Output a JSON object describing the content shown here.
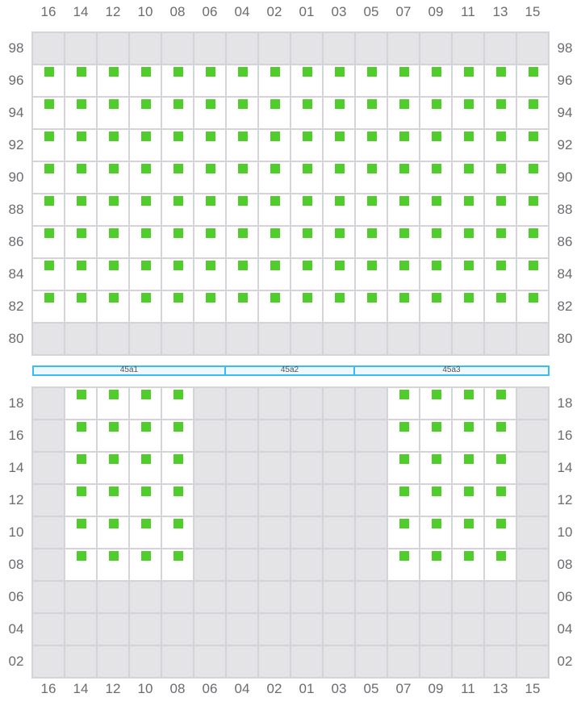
{
  "columns": [
    "16",
    "14",
    "12",
    "10",
    "08",
    "06",
    "04",
    "02",
    "01",
    "03",
    "05",
    "07",
    "09",
    "11",
    "13",
    "15"
  ],
  "colors": {
    "slot_occupied": "#4fcd2b",
    "slot_empty": "#ffffff",
    "slot_unavailable": "#e4e4e7",
    "grid_line": "#d4d4d8",
    "bar_border": "#38bdf8"
  },
  "top_section": {
    "rows": [
      {
        "label": "98",
        "occupied": []
      },
      {
        "label": "96",
        "occupied": [
          "16",
          "14",
          "12",
          "10",
          "08",
          "06",
          "04",
          "02",
          "01",
          "03",
          "05",
          "07",
          "09",
          "11",
          "13",
          "15"
        ]
      },
      {
        "label": "94",
        "occupied": [
          "16",
          "14",
          "12",
          "10",
          "08",
          "06",
          "04",
          "02",
          "01",
          "03",
          "05",
          "07",
          "09",
          "11",
          "13",
          "15"
        ]
      },
      {
        "label": "92",
        "occupied": [
          "16",
          "14",
          "12",
          "10",
          "08",
          "06",
          "04",
          "02",
          "01",
          "03",
          "05",
          "07",
          "09",
          "11",
          "13",
          "15"
        ]
      },
      {
        "label": "90",
        "occupied": [
          "16",
          "14",
          "12",
          "10",
          "08",
          "06",
          "04",
          "02",
          "01",
          "03",
          "05",
          "07",
          "09",
          "11",
          "13",
          "15"
        ]
      },
      {
        "label": "88",
        "occupied": [
          "16",
          "14",
          "12",
          "10",
          "08",
          "06",
          "04",
          "02",
          "01",
          "03",
          "05",
          "07",
          "09",
          "11",
          "13",
          "15"
        ]
      },
      {
        "label": "86",
        "occupied": [
          "16",
          "14",
          "12",
          "10",
          "08",
          "06",
          "04",
          "02",
          "01",
          "03",
          "05",
          "07",
          "09",
          "11",
          "13",
          "15"
        ]
      },
      {
        "label": "84",
        "occupied": [
          "16",
          "14",
          "12",
          "10",
          "08",
          "06",
          "04",
          "02",
          "01",
          "03",
          "05",
          "07",
          "09",
          "11",
          "13",
          "15"
        ]
      },
      {
        "label": "82",
        "occupied": [
          "16",
          "14",
          "12",
          "10",
          "08",
          "06",
          "04",
          "02",
          "01",
          "03",
          "05",
          "07",
          "09",
          "11",
          "13",
          "15"
        ]
      },
      {
        "label": "80",
        "occupied": []
      }
    ]
  },
  "segments": [
    {
      "label": "45a1",
      "columns": [
        "16",
        "14",
        "12",
        "10",
        "08",
        "06"
      ]
    },
    {
      "label": "45a2",
      "columns": [
        "04",
        "02",
        "01",
        "03"
      ]
    },
    {
      "label": "45a3",
      "columns": [
        "05",
        "07",
        "09",
        "11",
        "13",
        "15"
      ]
    }
  ],
  "bottom_section": {
    "rows": [
      {
        "label": "18",
        "occupied": [
          "14",
          "12",
          "10",
          "08",
          "07",
          "09",
          "11",
          "13"
        ]
      },
      {
        "label": "16",
        "occupied": [
          "14",
          "12",
          "10",
          "08",
          "07",
          "09",
          "11",
          "13"
        ]
      },
      {
        "label": "14",
        "occupied": [
          "14",
          "12",
          "10",
          "08",
          "07",
          "09",
          "11",
          "13"
        ]
      },
      {
        "label": "12",
        "occupied": [
          "14",
          "12",
          "10",
          "08",
          "07",
          "09",
          "11",
          "13"
        ]
      },
      {
        "label": "10",
        "occupied": [
          "14",
          "12",
          "10",
          "08",
          "07",
          "09",
          "11",
          "13"
        ]
      },
      {
        "label": "08",
        "occupied": [
          "14",
          "12",
          "10",
          "08",
          "07",
          "09",
          "11",
          "13"
        ]
      },
      {
        "label": "06",
        "occupied": []
      },
      {
        "label": "04",
        "occupied": []
      },
      {
        "label": "02",
        "occupied": []
      }
    ]
  }
}
